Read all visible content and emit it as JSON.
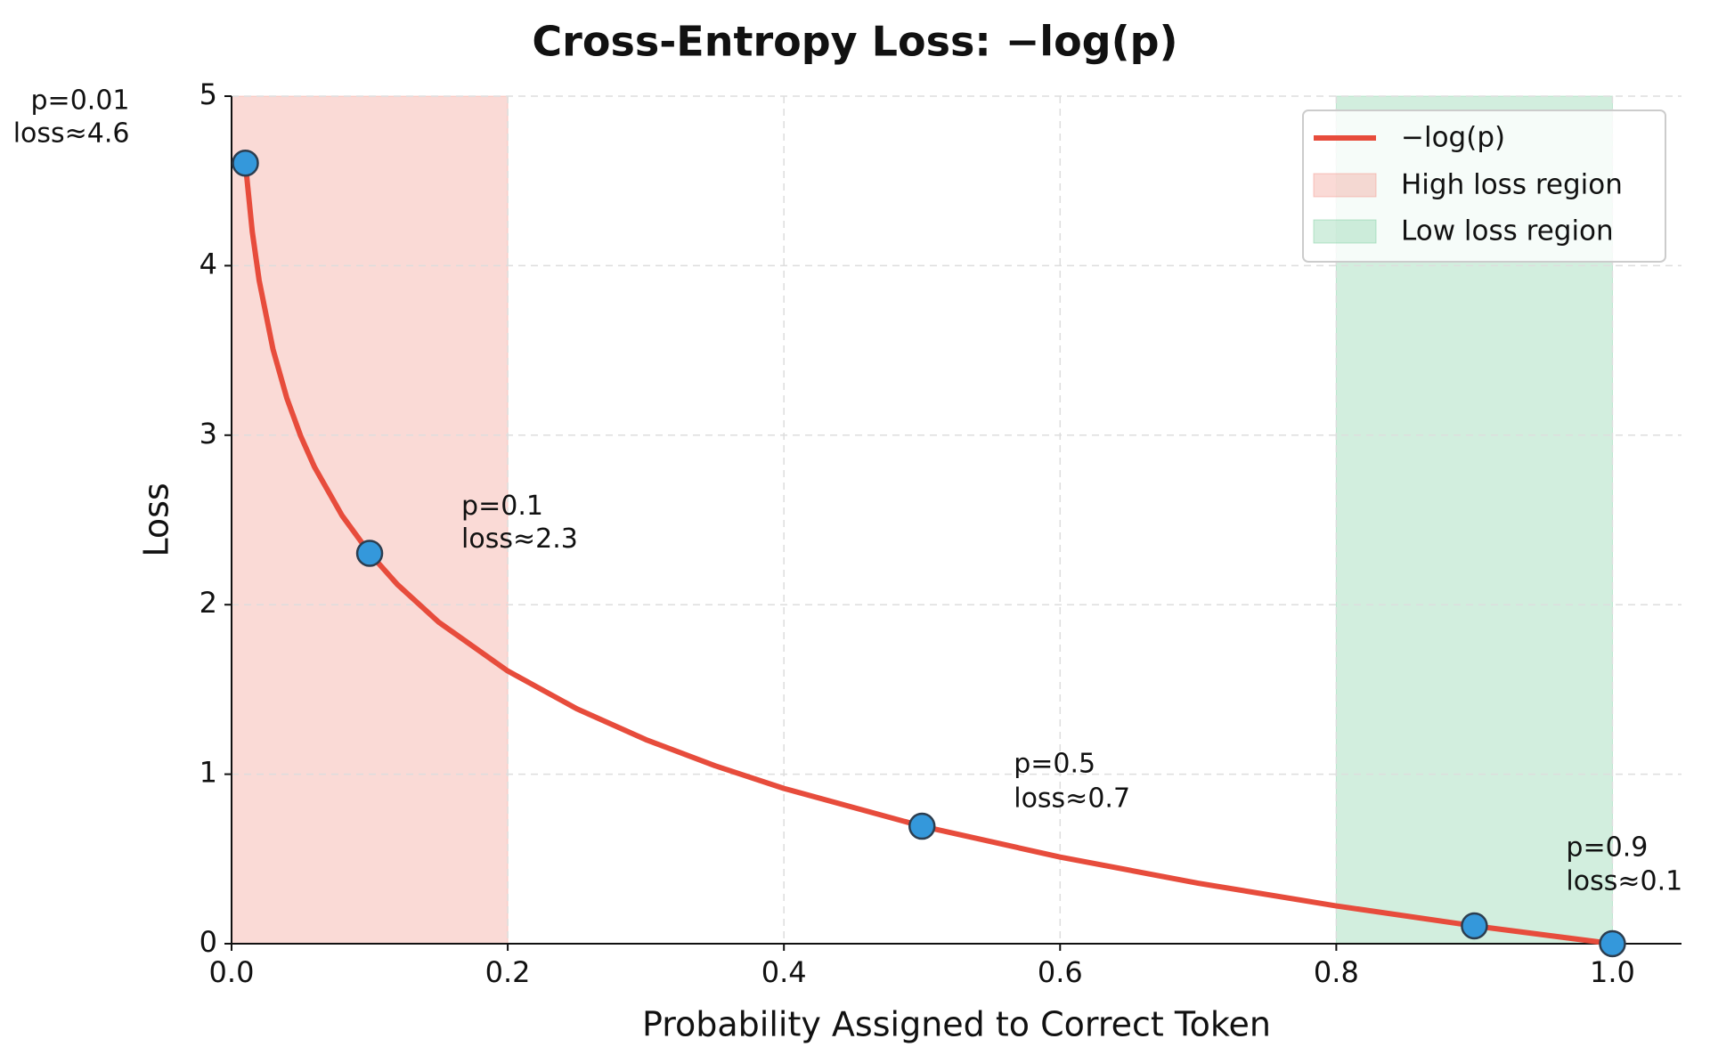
{
  "chart_data": {
    "type": "line",
    "title": "Cross-Entropy Loss: −log(p)",
    "xlabel": "Probability Assigned to Correct Token",
    "ylabel": "Loss",
    "xlim": [
      0,
      1.05
    ],
    "ylim": [
      0,
      5
    ],
    "xticks": [
      {
        "value": 0,
        "label": "0.0"
      },
      0.2,
      0.4,
      0.6,
      0.8,
      {
        "value": 1,
        "label": "1.0"
      }
    ],
    "yticks": [
      0,
      1,
      2,
      3,
      4,
      5
    ],
    "grid": true,
    "legend": "upper right",
    "regions": [
      {
        "name": "High loss region",
        "range": [
          0,
          0.2
        ],
        "color": "#f1948a"
      },
      {
        "name": "Low loss region",
        "range": [
          0.8,
          1.0
        ],
        "color": "#7dcea0"
      }
    ],
    "series": [
      {
        "name": "−log(p)",
        "color": "#e74c3c",
        "x": [
          0.01,
          0.015,
          0.02,
          0.03,
          0.04,
          0.05,
          0.06,
          0.08,
          0.1,
          0.12,
          0.15,
          0.2,
          0.25,
          0.3,
          0.35,
          0.4,
          0.5,
          0.6,
          0.7,
          0.8,
          0.9,
          1.0
        ],
        "values": [
          4.605,
          4.2,
          3.912,
          3.507,
          3.219,
          2.996,
          2.813,
          2.526,
          2.303,
          2.12,
          1.897,
          1.609,
          1.386,
          1.204,
          1.05,
          0.916,
          0.693,
          0.511,
          0.357,
          0.223,
          0.105,
          0
        ]
      },
      {
        "type": "scatter",
        "color": "#3498db",
        "x": [
          0.01,
          0.1,
          0.5,
          0.9,
          1.0
        ],
        "values": [
          4.605,
          2.303,
          0.693,
          0.105,
          0
        ]
      }
    ],
    "annotations": [
      [
        "p=0.01",
        "loss≈4.6"
      ],
      [
        "p=0.1",
        "loss≈2.3"
      ],
      [
        "p=0.5",
        "loss≈0.7"
      ],
      [
        "p=0.9",
        "loss≈0.1"
      ]
    ]
  }
}
